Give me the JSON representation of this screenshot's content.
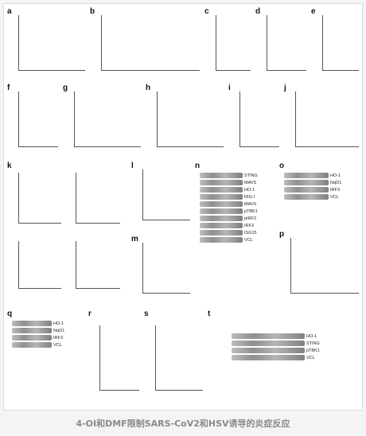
{
  "panels": {
    "a": "a",
    "b": "b",
    "c": "c",
    "d": "d",
    "e": "e",
    "f": "f",
    "g": "g",
    "h": "h",
    "i": "i",
    "j": "j",
    "k": "k",
    "l": "l",
    "m": "m",
    "n": "n",
    "o": "o",
    "p": "p",
    "q": "q",
    "r": "r",
    "s": "s",
    "t": "t"
  },
  "blots": {
    "n": [
      "STING",
      "MAVS",
      "HO-1",
      "RIG-I",
      "MAVS",
      "pTBK1",
      "pIRF3",
      "IRF3",
      "ISG15",
      "VCL"
    ],
    "o": [
      "HO-1",
      "NqO1",
      "IRF3",
      "VCL"
    ],
    "q": [
      "HO-1",
      "NqO1",
      "IRF3",
      "VCL"
    ],
    "t": [
      "HO-1",
      "STING",
      "pTBK1",
      "VCL"
    ]
  },
  "caption": "4-OI和DMF限制SARS-CoV2和HSV诱导的炎症反应"
}
